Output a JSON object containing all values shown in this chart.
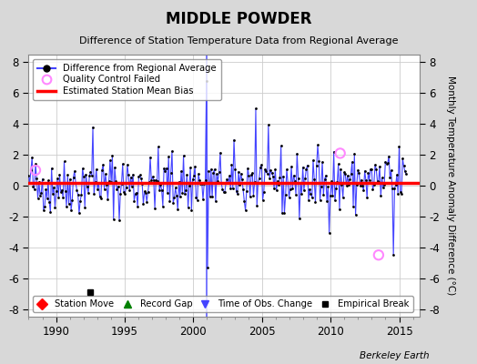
{
  "title": "MIDDLE POWDER",
  "subtitle": "Difference of Station Temperature Data from Regional Average",
  "ylabel": "Monthly Temperature Anomaly Difference (°C)",
  "xlabel_bottom": "Berkeley Earth",
  "xlim": [
    1988.0,
    2016.5
  ],
  "ylim": [
    -8.5,
    8.5
  ],
  "yticks": [
    -8,
    -6,
    -4,
    -2,
    0,
    2,
    4,
    6,
    8
  ],
  "xticks": [
    1990,
    1995,
    2000,
    2005,
    2010,
    2015
  ],
  "bias_line_y": 0.15,
  "bias_line_color": "#ff0000",
  "line_color": "#4444ff",
  "dot_color": "#000000",
  "qc_fail_color": "#ff88ff",
  "empirical_break_x": 1992.5,
  "empirical_break_y": -6.9,
  "time_of_obs_x": 2001.0,
  "background_color": "#d8d8d8",
  "plot_bg_color": "#ffffff",
  "seed": 42,
  "qc_times": [
    1988.5,
    2010.7,
    2013.5
  ],
  "qc_values": [
    1.0,
    2.1,
    -4.5
  ]
}
